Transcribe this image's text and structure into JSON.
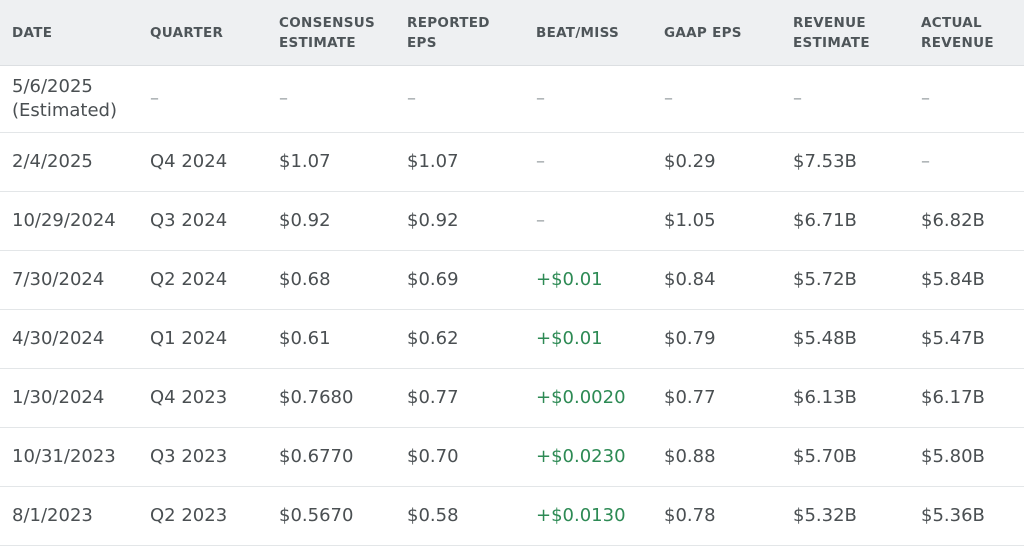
{
  "columns": [
    {
      "line1": "Date",
      "line2": ""
    },
    {
      "line1": "Quarter",
      "line2": ""
    },
    {
      "line1": "Consensus",
      "line2": "Estimate"
    },
    {
      "line1": "Reported",
      "line2": "EPS"
    },
    {
      "line1": "Beat/Miss",
      "line2": ""
    },
    {
      "line1": "GAAP EPS",
      "line2": ""
    },
    {
      "line1": "Revenue",
      "line2": "Estimate"
    },
    {
      "line1": "Actual",
      "line2": "Revenue"
    }
  ],
  "rows": [
    {
      "date": "5/6/2025",
      "date_note": "(Estimated)",
      "quarter": "–",
      "consensus": "–",
      "reported": "–",
      "beat_miss": "–",
      "gaap": "–",
      "rev_est": "–",
      "rev_actual": "–"
    },
    {
      "date": "2/4/2025",
      "date_note": "",
      "quarter": "Q4 2024",
      "consensus": "$1.07",
      "reported": "$1.07",
      "beat_miss": "–",
      "gaap": "$0.29",
      "rev_est": "$7.53B",
      "rev_actual": "–"
    },
    {
      "date": "10/29/2024",
      "date_note": "",
      "quarter": "Q3 2024",
      "consensus": "$0.92",
      "reported": "$0.92",
      "beat_miss": "–",
      "gaap": "$1.05",
      "rev_est": "$6.71B",
      "rev_actual": "$6.82B"
    },
    {
      "date": "7/30/2024",
      "date_note": "",
      "quarter": "Q2 2024",
      "consensus": "$0.68",
      "reported": "$0.69",
      "beat_miss": "+$0.01",
      "gaap": "$0.84",
      "rev_est": "$5.72B",
      "rev_actual": "$5.84B"
    },
    {
      "date": "4/30/2024",
      "date_note": "",
      "quarter": "Q1 2024",
      "consensus": "$0.61",
      "reported": "$0.62",
      "beat_miss": "+$0.01",
      "gaap": "$0.79",
      "rev_est": "$5.48B",
      "rev_actual": "$5.47B"
    },
    {
      "date": "1/30/2024",
      "date_note": "",
      "quarter": "Q4 2023",
      "consensus": "$0.7680",
      "reported": "$0.77",
      "beat_miss": "+$0.0020",
      "gaap": "$0.77",
      "rev_est": "$6.13B",
      "rev_actual": "$6.17B"
    },
    {
      "date": "10/31/2023",
      "date_note": "",
      "quarter": "Q3 2023",
      "consensus": "$0.6770",
      "reported": "$0.70",
      "beat_miss": "+$0.0230",
      "gaap": "$0.88",
      "rev_est": "$5.70B",
      "rev_actual": "$5.80B"
    },
    {
      "date": "8/1/2023",
      "date_note": "",
      "quarter": "Q2 2023",
      "consensus": "$0.5670",
      "reported": "$0.58",
      "beat_miss": "+$0.0130",
      "gaap": "$0.78",
      "rev_est": "$5.32B",
      "rev_actual": "$5.36B"
    }
  ],
  "colors": {
    "positive": "#2d8a54",
    "dash": "#9aa0a4",
    "header_bg": "#eef0f2"
  }
}
